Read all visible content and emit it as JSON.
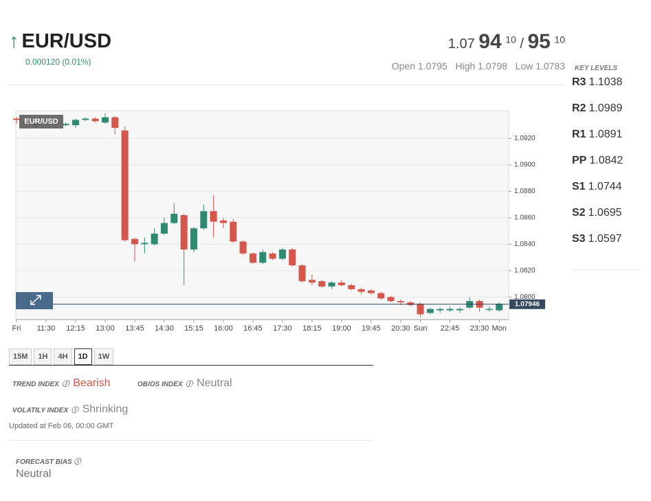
{
  "header": {
    "pair": "EUR/USD",
    "change": "0.000120 (0.01%)",
    "bid_big": "1.07",
    "bid_pips": "94",
    "bid_frac": "10",
    "separator": "/",
    "ask_pips": "95",
    "ask_frac": "10",
    "open_label": "Open",
    "open": 1.0795,
    "high_label": "High",
    "high": 1.0798,
    "low_label": "Low",
    "low": 1.0783
  },
  "key_levels": {
    "title": "KEY LEVELS",
    "levels": [
      {
        "label": "R3",
        "value": 1.1038
      },
      {
        "label": "R2",
        "value": 1.0989
      },
      {
        "label": "R1",
        "value": 1.0891
      },
      {
        "label": "PP",
        "value": 1.0842
      },
      {
        "label": "S1",
        "value": 1.0744
      },
      {
        "label": "S2",
        "value": 1.0695
      },
      {
        "label": "S3",
        "value": 1.0597
      }
    ]
  },
  "timeframes": {
    "items": [
      "15M",
      "1H",
      "4H",
      "1D",
      "1W"
    ],
    "active": "1D"
  },
  "indices": {
    "trend_label": "TREND INDEX",
    "trend": "Bearish",
    "obos_label": "OB/OS INDEX",
    "obos": "Neutral",
    "volatility_label": "VOLATILY INDEX",
    "volatility": "Shrinking",
    "updated": "Updated at Feb 06, 00:00 GMT",
    "forecast_label": "FORECAST BIAS",
    "forecast": "Neutral"
  },
  "chart_data": {
    "type": "candlestick",
    "label": "EUR/USD",
    "last_price": 1.07946,
    "up_color": "#2e8b72",
    "down_color": "#d5564a",
    "grid": true,
    "ylim": [
      1.0783,
      1.0941
    ],
    "yticks": [
      {
        "value": 1.08,
        "label": "1.0800"
      },
      {
        "value": 1.082,
        "label": "1.0820"
      },
      {
        "value": 1.084,
        "label": "1.0840"
      },
      {
        "value": 1.086,
        "label": "1.0860"
      },
      {
        "value": 1.088,
        "label": "1.0880"
      },
      {
        "value": 1.09,
        "label": "1.0900"
      },
      {
        "value": 1.092,
        "label": "1.0920"
      }
    ],
    "categories": [
      "Fri",
      null,
      null,
      "11:30",
      null,
      null,
      "12:15",
      null,
      null,
      "13:00",
      null,
      null,
      "13:45",
      null,
      null,
      "14:30",
      null,
      null,
      "15:15",
      null,
      null,
      "16:00",
      null,
      null,
      "16:45",
      null,
      null,
      "17:30",
      null,
      null,
      "18:15",
      null,
      null,
      "19:00",
      null,
      null,
      "19:45",
      null,
      null,
      "20:30",
      null,
      "Sun",
      null,
      null,
      "22:45",
      null,
      null,
      "23:30",
      null,
      "Mon"
    ],
    "open": [
      1.0935,
      1.0933,
      1.0931,
      1.0931,
      1.0932,
      1.093,
      1.093,
      1.0934,
      1.0935,
      1.0932,
      1.0936,
      1.0926,
      1.0844,
      1.084,
      1.084,
      1.0848,
      1.0856,
      1.0862,
      1.0836,
      1.0852,
      1.0865,
      1.0858,
      1.0857,
      1.0842,
      1.0833,
      1.0826,
      1.0833,
      1.0829,
      1.0836,
      1.0824,
      1.0813,
      1.0812,
      1.0808,
      1.0811,
      1.0809,
      1.0806,
      1.0805,
      1.0803,
      1.08,
      1.0797,
      1.0796,
      1.0795,
      1.0788,
      1.079,
      1.079,
      1.079,
      1.0792,
      1.0797,
      1.0791,
      1.079
    ],
    "high": [
      1.0936,
      1.0934,
      1.0932,
      1.0933,
      1.0933,
      1.0932,
      1.0935,
      1.0936,
      1.0936,
      1.0939,
      1.0937,
      1.0929,
      1.0845,
      1.0845,
      1.0852,
      1.086,
      1.0871,
      1.0863,
      1.0853,
      1.087,
      1.0877,
      1.086,
      1.0859,
      1.0843,
      1.0834,
      1.0836,
      1.0834,
      1.0837,
      1.0837,
      1.0825,
      1.0817,
      1.0813,
      1.0812,
      1.0813,
      1.081,
      1.0807,
      1.0806,
      1.0804,
      1.0801,
      1.0798,
      1.0797,
      1.0796,
      1.0792,
      1.0792,
      1.0793,
      1.0792,
      1.08,
      1.0798,
      1.0793,
      1.0796
    ],
    "low": [
      1.0931,
      1.0929,
      1.0928,
      1.0929,
      1.093,
      1.0929,
      1.0928,
      1.0933,
      1.0932,
      1.0931,
      1.0923,
      1.0842,
      1.0827,
      1.0833,
      1.0839,
      1.0847,
      1.0855,
      1.0809,
      1.0834,
      1.0851,
      1.0845,
      1.0852,
      1.0841,
      1.0832,
      1.0825,
      1.0825,
      1.0828,
      1.0828,
      1.0823,
      1.0811,
      1.0809,
      1.0807,
      1.0806,
      1.0808,
      1.0805,
      1.0802,
      1.0802,
      1.0798,
      1.0796,
      1.0794,
      1.0793,
      1.0785,
      1.0787,
      1.0788,
      1.0789,
      1.0788,
      1.0791,
      1.0789,
      1.0789,
      1.0789
    ],
    "close": [
      1.0934,
      1.0931,
      1.093,
      1.0932,
      1.0931,
      1.0931,
      1.0934,
      1.0935,
      1.0933,
      1.0936,
      1.0928,
      1.0843,
      1.084,
      1.0841,
      1.0848,
      1.0856,
      1.0863,
      1.0836,
      1.0852,
      1.0865,
      1.0857,
      1.0856,
      1.0842,
      1.0833,
      1.0826,
      1.0834,
      1.0829,
      1.0836,
      1.0824,
      1.0812,
      1.0811,
      1.0808,
      1.0811,
      1.0809,
      1.0806,
      1.0804,
      1.0803,
      1.0799,
      1.0797,
      1.0796,
      1.0794,
      1.0787,
      1.0791,
      1.0791,
      1.0791,
      1.0791,
      1.0797,
      1.0792,
      1.0791,
      1.0795
    ]
  }
}
